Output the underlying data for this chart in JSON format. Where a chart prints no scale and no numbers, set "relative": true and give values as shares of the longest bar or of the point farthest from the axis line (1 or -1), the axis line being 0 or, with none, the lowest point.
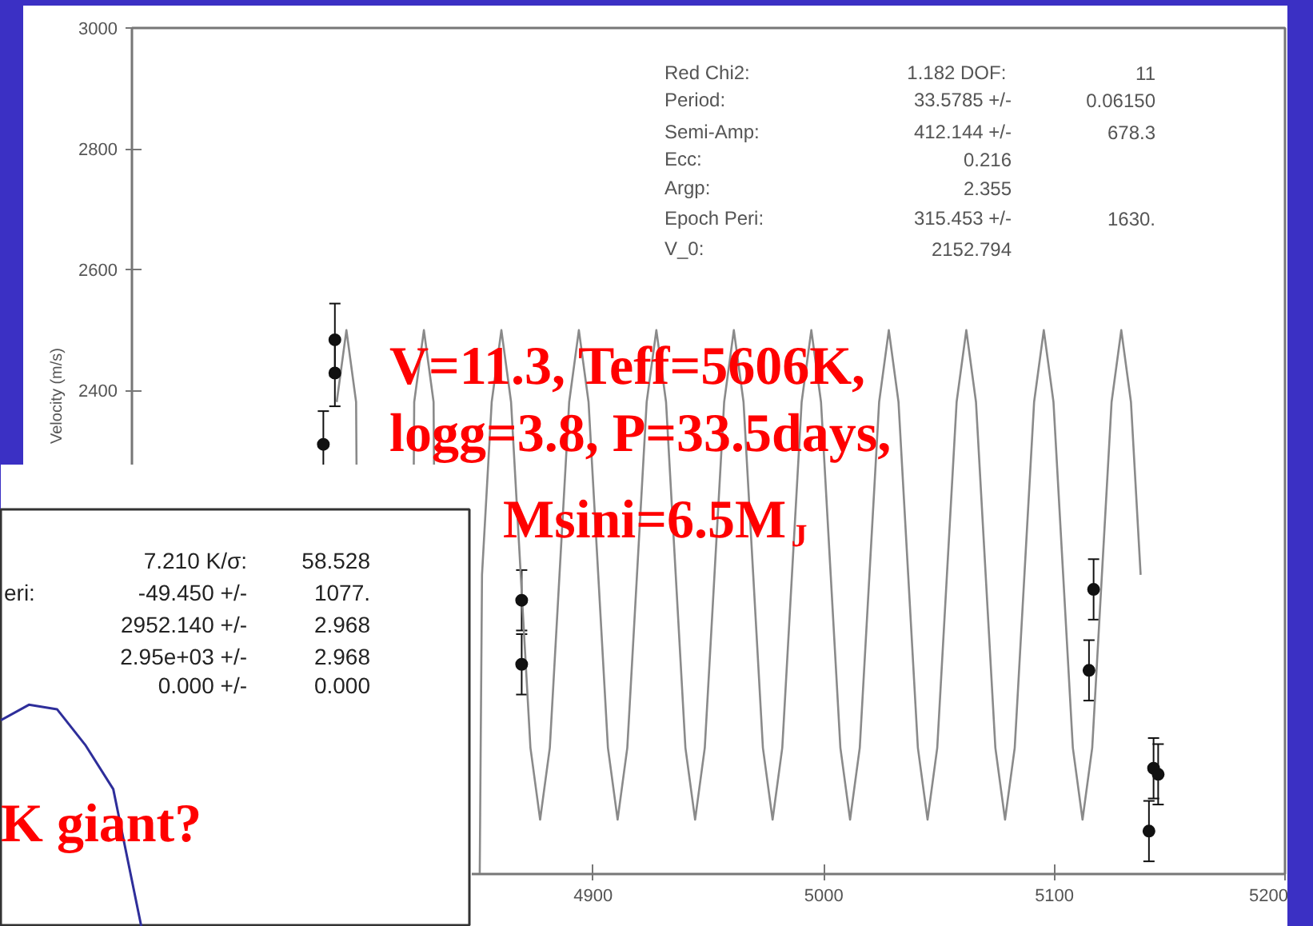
{
  "chart_data": [
    {
      "type": "line",
      "ylabel": "Velocity (m/s)",
      "xlim": [
        4700,
        5200
      ],
      "ylim": [
        1600,
        3000
      ],
      "xticks": [
        4900,
        5000,
        5100,
        5200
      ],
      "yticks": [
        2400,
        2600,
        2800,
        3000
      ],
      "grid": false,
      "line_style": "solid",
      "series": [
        {
          "type": "line",
          "color": "#8a8a8a",
          "x": [
            4788.8,
            4793.0,
            4797.2,
            4801.4,
            4805.6,
            4809.8,
            4814.0,
            4818.2,
            4822.4,
            4826.6,
            4830.8,
            4835.0,
            4839.2,
            4843.4,
            4847.6,
            4851.8,
            4856.0,
            4860.2,
            4864.4,
            4868.6,
            4872.8,
            4877.0,
            4881.2,
            4885.4,
            4889.6,
            4893.8,
            4898.0,
            4902.2,
            4906.4,
            4910.6,
            4914.8,
            4919.0,
            4923.2,
            4927.4,
            4931.6,
            4935.8,
            4940.0,
            4944.2,
            4948.4,
            4952.6,
            4956.8,
            4961.0,
            4965.2,
            4969.4,
            4973.6,
            4977.8,
            4982.0,
            4986.2,
            4990.4,
            4994.6,
            4998.8,
            5003.0,
            5007.2,
            5011.4,
            5015.6,
            5019.8,
            5024.0,
            5028.2,
            5032.4,
            5036.6,
            5040.8,
            5045.0,
            5049.2,
            5053.4,
            5057.6,
            5061.8,
            5066.0,
            5070.2,
            5074.4,
            5078.6,
            5082.8,
            5087.0,
            5091.2,
            5095.4,
            5099.6,
            5103.8,
            5108.0,
            5112.2,
            5116.4,
            5120.6,
            5124.8,
            5129.0,
            5133.2,
            5137.4
          ],
          "values": [
            2381,
            2500,
            2381,
            null,
            null,
            null,
            null,
            null,
            2381,
            2500,
            2381,
            null,
            null,
            null,
            null,
            2095,
            2381,
            2500,
            2381,
            2095,
            1809,
            1690,
            1809,
            2095,
            2381,
            2500,
            2381,
            2095,
            1809,
            1690,
            1809,
            2095,
            2381,
            2500,
            2381,
            2095,
            1809,
            1690,
            1809,
            2095,
            2381,
            2500,
            2381,
            2095,
            1809,
            1690,
            1809,
            2095,
            2381,
            2500,
            2381,
            2095,
            1809,
            1690,
            1809,
            2095,
            2381,
            2500,
            2381,
            2095,
            1809,
            1690,
            1809,
            2095,
            2381,
            2500,
            2381,
            2095,
            1809,
            1690,
            1809,
            2095,
            2381,
            2500,
            2381,
            2095,
            1809,
            1690,
            1809,
            2095,
            2381,
            2500,
            2381,
            2095
          ]
        },
        {
          "type": "scatter",
          "color": "#111111",
          "marker": "circle",
          "x": [
            4788,
            4788,
            4783,
            4869,
            4869,
            5117,
            5115,
            5143,
            5145,
            5141
          ],
          "values": [
            2484,
            2429,
            2311,
            2053,
            1947,
            2071,
            1937,
            1775,
            1765,
            1671
          ],
          "errors": [
            60,
            55,
            55,
            50,
            50,
            50,
            50,
            50,
            50,
            50
          ]
        }
      ],
      "annotations": [
        "Red Chi2:\t1.182  DOF:\t11",
        "Period:\t33.5785 +/-\t0.06150",
        "Semi-Amp:\t412.144 +/-\t678.3",
        "Ecc:\t0.216",
        "Argp:\t2.355",
        "Epoch Peri:\t315.453 +/-\t1630.",
        "V_0:\t2152.794",
        "V=11.3, Teff=5606K,",
        "logg=3.8, P=33.5days,",
        "Msini=6.5M$_{J}$"
      ]
    },
    {
      "type": "line",
      "relative": true,
      "categories": [
        null,
        null,
        null,
        null,
        null,
        null
      ],
      "values": [
        0.93,
        1,
        0.98,
        0.82,
        0.62,
        0
      ],
      "color": "#2e2e9a",
      "grid": false,
      "annotations": [
        "\t7.210 K/σ:\t58.528",
        "eri:\t-49.450 +/-\t1077.",
        "\t2952.140 +/-\t2.968",
        "\t2.95e+03 +/-\t2.968",
        "\t0.000 +/-\t0.000",
        "K giant?"
      ]
    }
  ]
}
